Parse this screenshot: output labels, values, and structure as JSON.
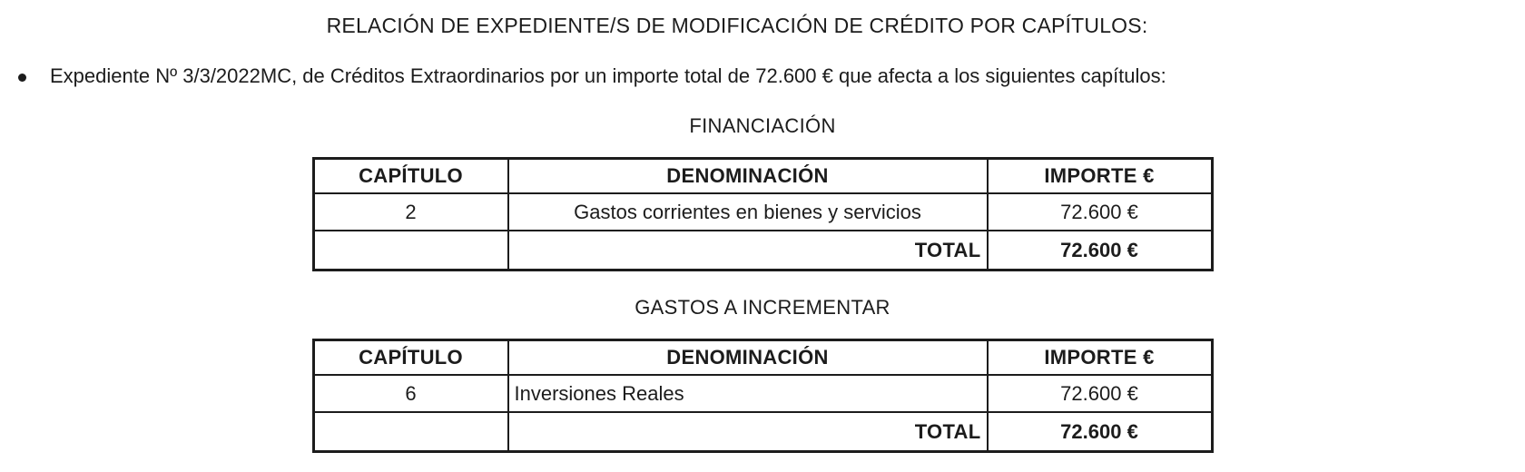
{
  "page": {
    "title": "RELACIÓN DE EXPEDIENTE/S DE MODIFICACIÓN DE CRÉDITO POR CAPÍTULOS:",
    "bullet_item": "Expediente Nº 3/3/2022MC, de Créditos Extraordinarios por un importe total de 72.600 € que afecta a los siguientes capítulos:"
  },
  "sections": [
    {
      "heading": "FINANCIACIÓN",
      "table": {
        "headers": [
          "CAPÍTULO",
          "DENOMINACIÓN",
          "IMPORTE €"
        ],
        "rows": [
          {
            "capitulo": "2",
            "denominacion": "Gastos corrientes en bienes y servicios",
            "importe": "72.600 €"
          }
        ],
        "total_label": "TOTAL",
        "total_importe": "72.600 €"
      }
    },
    {
      "heading": "GASTOS A INCREMENTAR",
      "table": {
        "headers": [
          "CAPÍTULO",
          "DENOMINACIÓN",
          "IMPORTE €"
        ],
        "rows": [
          {
            "capitulo": "6",
            "denominacion": "Inversiones Reales",
            "importe": "72.600 €"
          }
        ],
        "total_label": "TOTAL",
        "total_importe": "72.600 €"
      }
    }
  ],
  "colors": {
    "text": "#1c1c1c",
    "border": "#1c1c1c",
    "background": "#ffffff"
  }
}
